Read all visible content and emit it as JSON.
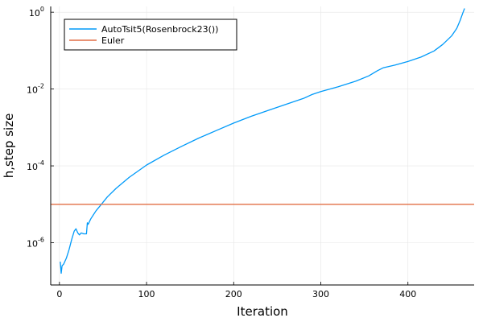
{
  "chart_data": {
    "type": "line",
    "xlabel": "Iteration",
    "ylabel": "h,step size",
    "xlim": [
      -10,
      476
    ],
    "ylim_log10": [
      -7.1,
      0.15
    ],
    "yscale": "log",
    "grid": true,
    "legend_position": "top-left",
    "x_ticks": [
      {
        "value": 0,
        "label": "0"
      },
      {
        "value": 100,
        "label": "100"
      },
      {
        "value": 200,
        "label": "200"
      },
      {
        "value": 300,
        "label": "300"
      },
      {
        "value": 400,
        "label": "400"
      }
    ],
    "y_ticks": [
      {
        "exp": 0,
        "base": "10",
        "sup": "0"
      },
      {
        "exp": -2,
        "base": "10",
        "sup": "-2"
      },
      {
        "exp": -4,
        "base": "10",
        "sup": "-4"
      },
      {
        "exp": -6,
        "base": "10",
        "sup": "-6"
      }
    ],
    "series": [
      {
        "name": "AutoTsit5(Rosenbrock23())",
        "color": "#009af9",
        "points": [
          [
            1,
            3.2e-07
          ],
          [
            2,
            1.6e-07
          ],
          [
            3,
            2.5e-07
          ],
          [
            5,
            2.8e-07
          ],
          [
            8,
            4e-07
          ],
          [
            11,
            6.5e-07
          ],
          [
            14,
            1.2e-06
          ],
          [
            17,
            2e-06
          ],
          [
            19,
            2.3e-06
          ],
          [
            21,
            1.8e-06
          ],
          [
            23,
            1.6e-06
          ],
          [
            25,
            1.8e-06
          ],
          [
            28,
            1.7e-06
          ],
          [
            31,
            1.7e-06
          ],
          [
            32,
            3.3e-06
          ],
          [
            33,
            3e-06
          ],
          [
            36,
            4.2e-06
          ],
          [
            39,
            5.3e-06
          ],
          [
            42,
            6.8e-06
          ],
          [
            47,
            9.3e-06
          ],
          [
            55,
            1.55e-05
          ],
          [
            65,
            2.6e-05
          ],
          [
            80,
            5e-05
          ],
          [
            100,
            0.000105
          ],
          [
            120,
            0.00019
          ],
          [
            140,
            0.00032
          ],
          [
            160,
            0.00053
          ],
          [
            180,
            0.00083
          ],
          [
            200,
            0.0013
          ],
          [
            220,
            0.00195
          ],
          [
            240,
            0.0028
          ],
          [
            260,
            0.004
          ],
          [
            280,
            0.0057
          ],
          [
            290,
            0.0072
          ],
          [
            300,
            0.0086
          ],
          [
            320,
            0.0115
          ],
          [
            340,
            0.016
          ],
          [
            355,
            0.022
          ],
          [
            365,
            0.03
          ],
          [
            372,
            0.036
          ],
          [
            385,
            0.042
          ],
          [
            400,
            0.052
          ],
          [
            415,
            0.068
          ],
          [
            430,
            0.098
          ],
          [
            440,
            0.145
          ],
          [
            450,
            0.24
          ],
          [
            456,
            0.38
          ],
          [
            460,
            0.62
          ],
          [
            463,
            0.95
          ],
          [
            465,
            1.25
          ]
        ]
      },
      {
        "name": "Euler",
        "color": "#e26f46",
        "points": [
          [
            -10,
            1e-05
          ],
          [
            476,
            1e-05
          ]
        ]
      }
    ]
  }
}
